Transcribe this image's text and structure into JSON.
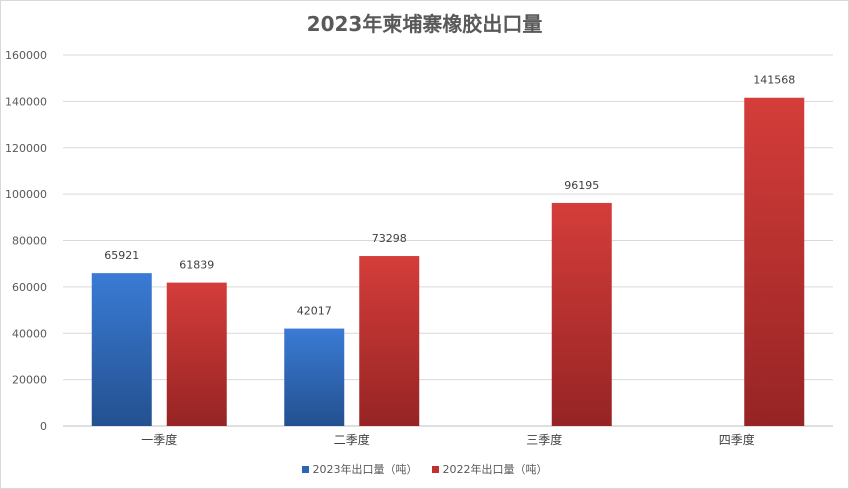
{
  "chart_data": {
    "type": "bar",
    "title": "2023年柬埔寨橡胶出口量",
    "categories": [
      "一季度",
      "二季度",
      "三季度",
      "四季度"
    ],
    "series": [
      {
        "name": "2023年出口量（吨）",
        "color": "#2e64b5",
        "values": [
          65921,
          42017,
          null,
          null
        ]
      },
      {
        "name": "2022年出口量（吨）",
        "color": "#c0302f",
        "values": [
          61839,
          73298,
          96195,
          141568
        ]
      }
    ],
    "ylim": [
      0,
      160000
    ],
    "yticks": [
      "0",
      "20000",
      "40000",
      "60000",
      "80000",
      "100000",
      "120000",
      "140000",
      "160000"
    ],
    "grid": true,
    "legend": "bottom"
  }
}
